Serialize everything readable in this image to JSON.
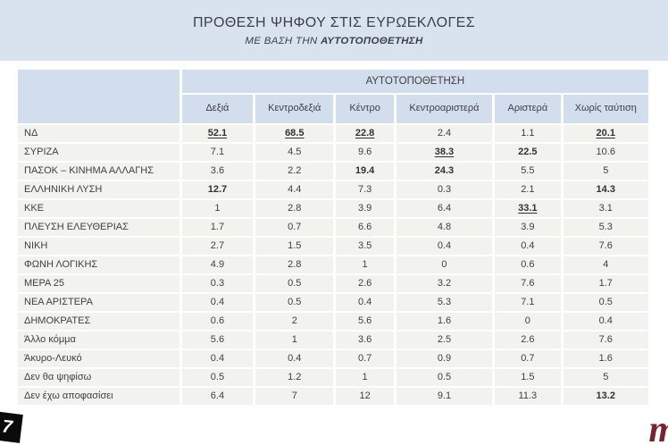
{
  "banner": {
    "title": "ΠΡΟΘΕΣΗ ΨΗΦΟΥ ΣΤΙΣ ΕΥΡΩΕΚΛΟΓΕΣ",
    "subtitle_prefix": "ΜΕ ΒΑΣΗ ΤΗΝ ",
    "subtitle_emphasis": "ΑΥΤΟΤΟΠΟΘΕΤΗΣΗ"
  },
  "chart_data": {
    "type": "table",
    "title": "ΠΡΟΘΕΣΗ ΨΗΦΟΥ ΣΤΙΣ ΕΥΡΩΕΚΛΟΓΕΣ",
    "subtitle": "ΜΕ ΒΑΣΗ ΤΗΝ ΑΥΤΟΤΟΠΟΘΕΤΗΣΗ",
    "group_header": "ΑΥΤΟΤΟΠΟΘΕΤΗΣΗ",
    "columns": [
      "Δεξιά",
      "Κεντροδεξιά",
      "Κέντρο",
      "Κεντροαριστερά",
      "Αριστερά",
      "Χωρίς ταύτιση"
    ],
    "rows": [
      {
        "label": "ΝΔ",
        "values": [
          52.1,
          68.5,
          22.8,
          2.4,
          1.1,
          20.1
        ],
        "bold": [
          1,
          1,
          1,
          0,
          0,
          1
        ],
        "underline": [
          1,
          1,
          1,
          0,
          0,
          1
        ]
      },
      {
        "label": "ΣΥΡΙΖΑ",
        "values": [
          7.1,
          4.5,
          9.6,
          38.3,
          22.5,
          10.6
        ],
        "bold": [
          0,
          0,
          0,
          1,
          1,
          0
        ],
        "underline": [
          0,
          0,
          0,
          1,
          0,
          0
        ]
      },
      {
        "label": "ΠΑΣΟΚ – ΚΙΝΗΜΑ ΑΛΛΑΓΗΣ",
        "values": [
          3.6,
          2.2,
          19.4,
          24.3,
          5.5,
          5
        ],
        "bold": [
          0,
          0,
          1,
          1,
          0,
          0
        ],
        "underline": [
          0,
          0,
          0,
          0,
          0,
          0
        ]
      },
      {
        "label": "ΕΛΛΗΝΙΚΗ ΛΥΣΗ",
        "values": [
          12.7,
          4.4,
          7.3,
          0.3,
          2.1,
          14.3
        ],
        "bold": [
          1,
          0,
          0,
          0,
          0,
          1
        ],
        "underline": [
          0,
          0,
          0,
          0,
          0,
          0
        ]
      },
      {
        "label": "ΚΚΕ",
        "values": [
          1,
          2.8,
          3.9,
          6.4,
          33.1,
          3.1
        ],
        "bold": [
          0,
          0,
          0,
          0,
          1,
          0
        ],
        "underline": [
          0,
          0,
          0,
          0,
          1,
          0
        ]
      },
      {
        "label": "ΠΛΕΥΣΗ ΕΛΕΥΘΕΡΙΑΣ",
        "values": [
          1.7,
          0.7,
          6.6,
          4.8,
          3.9,
          5.3
        ],
        "bold": [
          0,
          0,
          0,
          0,
          0,
          0
        ],
        "underline": [
          0,
          0,
          0,
          0,
          0,
          0
        ]
      },
      {
        "label": "ΝΙΚΗ",
        "values": [
          2.7,
          1.5,
          3.5,
          0.4,
          0.4,
          7.6
        ],
        "bold": [
          0,
          0,
          0,
          0,
          0,
          0
        ],
        "underline": [
          0,
          0,
          0,
          0,
          0,
          0
        ]
      },
      {
        "label": "ΦΩΝΗ ΛΟΓΙΚΗΣ",
        "values": [
          4.9,
          2.8,
          1,
          0,
          0.6,
          4
        ],
        "bold": [
          0,
          0,
          0,
          0,
          0,
          0
        ],
        "underline": [
          0,
          0,
          0,
          0,
          0,
          0
        ]
      },
      {
        "label": "ΜΕΡΑ 25",
        "values": [
          0.3,
          0.5,
          2.6,
          3.2,
          7.6,
          1.7
        ],
        "bold": [
          0,
          0,
          0,
          0,
          0,
          0
        ],
        "underline": [
          0,
          0,
          0,
          0,
          0,
          0
        ]
      },
      {
        "label": "ΝΕΑ ΑΡΙΣΤΕΡΑ",
        "values": [
          0.4,
          0.5,
          0.4,
          5.3,
          7.1,
          0.5
        ],
        "bold": [
          0,
          0,
          0,
          0,
          0,
          0
        ],
        "underline": [
          0,
          0,
          0,
          0,
          0,
          0
        ]
      },
      {
        "label": "ΔΗΜΟΚΡΑΤΕΣ",
        "values": [
          0.6,
          2,
          5.6,
          1.6,
          0,
          0.4
        ],
        "bold": [
          0,
          0,
          0,
          0,
          0,
          0
        ],
        "underline": [
          0,
          0,
          0,
          0,
          0,
          0
        ]
      },
      {
        "label": "Άλλο κόμμα",
        "values": [
          5.6,
          1,
          3.6,
          2.5,
          2.6,
          7.6
        ],
        "bold": [
          0,
          0,
          0,
          0,
          0,
          0
        ],
        "underline": [
          0,
          0,
          0,
          0,
          0,
          0
        ]
      },
      {
        "label": "Άκυρο-Λευκό",
        "values": [
          0.4,
          0.4,
          0.7,
          0.9,
          0.7,
          1.6
        ],
        "bold": [
          0,
          0,
          0,
          0,
          0,
          0
        ],
        "underline": [
          0,
          0,
          0,
          0,
          0,
          0
        ]
      },
      {
        "label": "Δεν θα ψηφίσω",
        "values": [
          0.5,
          1.2,
          1,
          0.5,
          1.5,
          5
        ],
        "bold": [
          0,
          0,
          0,
          0,
          0,
          0
        ],
        "underline": [
          0,
          0,
          0,
          0,
          0,
          0
        ]
      },
      {
        "label": "Δεν έχω αποφασίσει",
        "values": [
          6.4,
          7,
          12,
          9.1,
          11.3,
          13.2
        ],
        "bold": [
          0,
          0,
          0,
          0,
          0,
          1
        ],
        "underline": [
          0,
          0,
          0,
          0,
          0,
          0
        ]
      }
    ]
  },
  "footer": {
    "left_logo_glyph": "7",
    "right_logo_glyph": "m"
  },
  "colors": {
    "banner_bg": "#d9e2ef",
    "header_bg": "#d2deee",
    "cell_bg": "#f2f2ef",
    "text": "#3f3f3f",
    "logo_maroon": "#7a2330"
  }
}
